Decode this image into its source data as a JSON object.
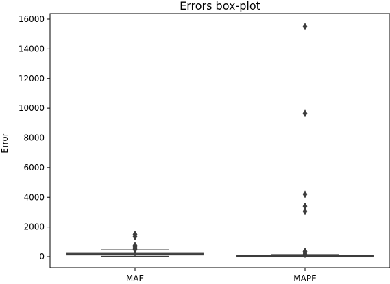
{
  "chart_data": {
    "type": "box",
    "title": "Errors box-plot",
    "xlabel": "",
    "ylabel": "Error",
    "ylim": [
      -700,
      16400
    ],
    "yticks": [
      0,
      2000,
      4000,
      6000,
      8000,
      10000,
      12000,
      14000,
      16000
    ],
    "ytick_labels": [
      "0",
      "2000",
      "4000",
      "6000",
      "8000",
      "10000",
      "12000",
      "14000",
      "16000"
    ],
    "categories": [
      "MAE",
      "MAPE"
    ],
    "boxes": [
      {
        "name": "MAE",
        "whisker_low": 20,
        "q1": 120,
        "median": 180,
        "q3": 260,
        "whisker_high": 450,
        "outliers": [
          1500,
          1350,
          750,
          650,
          550,
          480
        ]
      },
      {
        "name": "MAPE",
        "whisker_low": 5,
        "q1": 20,
        "median": 45,
        "q3": 80,
        "whisker_high": 130,
        "outliers": [
          15500,
          9650,
          4200,
          3400,
          3050,
          350,
          250,
          150
        ]
      }
    ],
    "box_fill": "#595959",
    "line_color": "#3d3d3d",
    "grid": false
  }
}
